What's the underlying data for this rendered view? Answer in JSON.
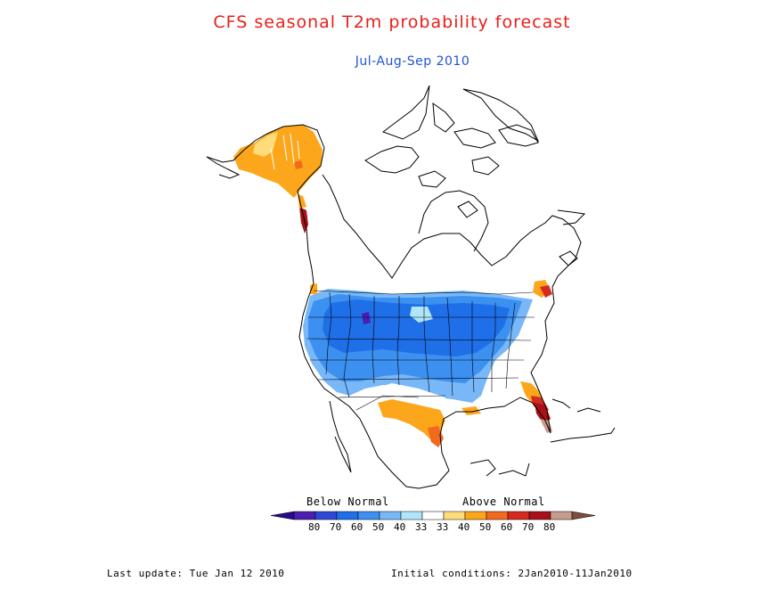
{
  "title": "CFS seasonal T2m probability forecast",
  "subtitle": "Jul-Aug-Sep 2010",
  "legend": {
    "below_label": "Below Normal",
    "above_label": "Above Normal",
    "numbers": [
      "80",
      "70",
      "60",
      "50",
      "40",
      "33",
      "33",
      "40",
      "50",
      "60",
      "70",
      "80"
    ],
    "colors": [
      "#4a1fb0",
      "#3048d8",
      "#1f6fe8",
      "#3c90f0",
      "#78b8f8",
      "#b0e6fb",
      "#ffffff",
      "#fedc7a",
      "#fca61c",
      "#f26a1b",
      "#d52b1e",
      "#a8101a",
      "#c79c8e"
    ],
    "end_below_color": "#2a0a8c",
    "end_above_color": "#7a4e3c"
  },
  "footer": {
    "last_update": "Last update: Tue Jan 12 2010",
    "initial_conditions": "Initial conditions: 2Jan2010-11Jan2010"
  },
  "side_text": "ﾠ",
  "regions": [
    {
      "name": "alaska",
      "category": "above-40"
    },
    {
      "name": "northern-us",
      "category": "below-60"
    },
    {
      "name": "central-us",
      "category": "below-50"
    },
    {
      "name": "texas",
      "category": "above-50"
    },
    {
      "name": "florida",
      "category": "above-70"
    },
    {
      "name": "new-england",
      "category": "above-60"
    }
  ]
}
